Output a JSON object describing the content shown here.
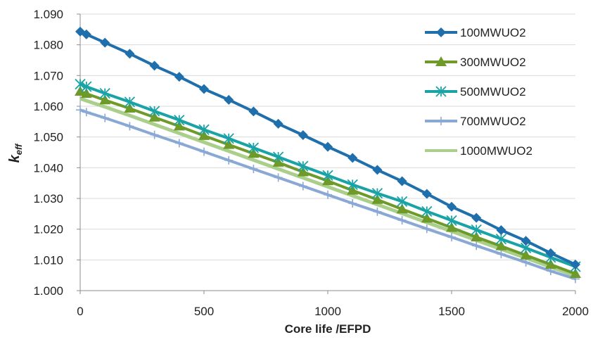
{
  "chart_data": {
    "type": "line",
    "xlabel": "Core life /EFPD",
    "ylabel": "keff",
    "ylabel_main": "k",
    "ylabel_sub": "eff",
    "xlim": [
      0,
      2000
    ],
    "ylim": [
      1.0,
      1.09
    ],
    "x_ticks": [
      "0",
      "500",
      "1000",
      "1500",
      "2000"
    ],
    "y_ticks": [
      "1.000",
      "1.010",
      "1.020",
      "1.030",
      "1.040",
      "1.050",
      "1.060",
      "1.070",
      "1.080",
      "1.090"
    ],
    "grid": "horizontal",
    "legend_position": "right",
    "series": [
      {
        "name": "100MWUO2",
        "color": "#1f6fad",
        "marker": "diamond",
        "x": [
          0,
          25,
          100,
          200,
          300,
          400,
          500,
          600,
          700,
          800,
          900,
          1000,
          1100,
          1200,
          1300,
          1400,
          1500,
          1600,
          1700,
          1800,
          1900,
          2000
        ],
        "y": [
          1.0843,
          1.0834,
          1.0807,
          1.0771,
          1.0732,
          1.0696,
          1.0656,
          1.0621,
          1.0583,
          1.0543,
          1.0506,
          1.0468,
          1.0432,
          1.0393,
          1.0356,
          1.0315,
          1.0273,
          1.0237,
          1.0197,
          1.0162,
          1.0122,
          1.0085
        ]
      },
      {
        "name": "300MWUO2",
        "color": "#6e9a2a",
        "marker": "triangle",
        "x": [
          0,
          25,
          100,
          200,
          300,
          400,
          500,
          600,
          700,
          800,
          900,
          1000,
          1100,
          1200,
          1300,
          1400,
          1500,
          1600,
          1700,
          1800,
          1900,
          2000
        ],
        "y": [
          1.0648,
          1.0641,
          1.062,
          1.0593,
          1.0564,
          1.0535,
          1.0504,
          1.0475,
          1.0446,
          1.0417,
          1.0386,
          1.0357,
          1.0326,
          1.0296,
          1.0265,
          1.0235,
          1.0205,
          1.0174,
          1.0145,
          1.0115,
          1.0085,
          1.0055
        ]
      },
      {
        "name": "500MWUO2",
        "color": "#1aa3a6",
        "marker": "asterisk",
        "x": [
          0,
          25,
          100,
          200,
          300,
          400,
          500,
          600,
          700,
          800,
          900,
          1000,
          1100,
          1200,
          1300,
          1400,
          1500,
          1600,
          1700,
          1800,
          1900,
          2000
        ],
        "y": [
          1.0672,
          1.0664,
          1.0642,
          1.0614,
          1.0584,
          1.0555,
          1.0524,
          1.0495,
          1.0465,
          1.0435,
          1.0405,
          1.0375,
          1.0345,
          1.0317,
          1.029,
          1.0258,
          1.0228,
          1.0198,
          1.0168,
          1.0139,
          1.0108,
          1.0078
        ]
      },
      {
        "name": "700MWUO2",
        "color": "#8aa8d6",
        "marker": "plus",
        "x": [
          0,
          25,
          100,
          200,
          300,
          400,
          500,
          600,
          700,
          800,
          900,
          1000,
          1100,
          1200,
          1300,
          1400,
          1500,
          1600,
          1700,
          1800,
          1900,
          2000
        ],
        "y": [
          1.0588,
          1.0581,
          1.0562,
          1.0535,
          1.0507,
          1.048,
          1.0452,
          1.0424,
          1.0396,
          1.0368,
          1.034,
          1.0312,
          1.0284,
          1.0257,
          1.0229,
          1.0201,
          1.0174,
          1.0146,
          1.0119,
          1.0092,
          1.0064,
          1.0038
        ]
      },
      {
        "name": "1000MWUO2",
        "color": "#a9cf8a",
        "marker": "none",
        "x": [
          0,
          25,
          100,
          200,
          300,
          400,
          500,
          600,
          700,
          800,
          900,
          1000,
          1100,
          1200,
          1300,
          1400,
          1500,
          1600,
          1700,
          1800,
          1900,
          2000
        ],
        "y": [
          1.0625,
          1.0618,
          1.0598,
          1.057,
          1.0541,
          1.0512,
          1.0483,
          1.0454,
          1.0425,
          1.0396,
          1.0367,
          1.0338,
          1.0309,
          1.028,
          1.0251,
          1.0222,
          1.0193,
          1.0164,
          1.0135,
          1.0106,
          1.0077,
          1.0048
        ]
      }
    ]
  }
}
